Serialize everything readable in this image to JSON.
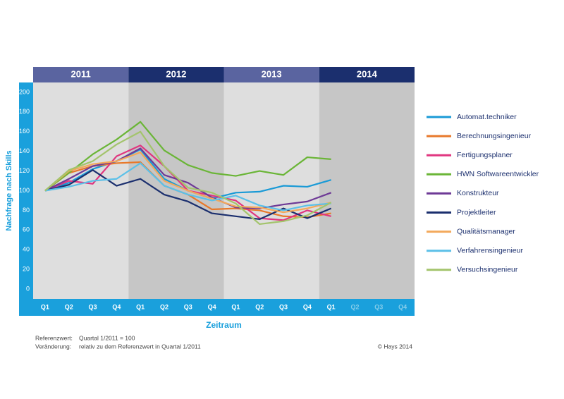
{
  "chart_data": {
    "type": "line",
    "years": [
      "2011",
      "2012",
      "2013",
      "2014"
    ],
    "categories": [
      "Q1",
      "Q2",
      "Q3",
      "Q4",
      "Q1",
      "Q2",
      "Q3",
      "Q4",
      "Q1",
      "Q2",
      "Q3",
      "Q4",
      "Q1",
      "Q2",
      "Q3",
      "Q4"
    ],
    "ylabel": "Nachfrage nach Skills",
    "xlabel": "Zeitraum",
    "ylim": [
      -10,
      210
    ],
    "yticks": [
      0,
      20,
      40,
      60,
      80,
      100,
      120,
      140,
      160,
      180,
      200
    ],
    "grid": false,
    "legend": "right",
    "series": [
      {
        "name": "Automat.techniker",
        "color": "#1a9ad6",
        "values": [
          100,
          108,
          122,
          130,
          142,
          112,
          100,
          92,
          98,
          99,
          105,
          104,
          111,
          null,
          null,
          null
        ]
      },
      {
        "name": "Berechnungsingenieur",
        "color": "#e8782a",
        "values": [
          100,
          118,
          125,
          128,
          129,
          105,
          96,
          81,
          82,
          80,
          74,
          73,
          77,
          null,
          null,
          null
        ]
      },
      {
        "name": "Fertigungsplaner",
        "color": "#e0357f",
        "values": [
          100,
          110,
          107,
          135,
          146,
          125,
          100,
          95,
          90,
          72,
          70,
          80,
          74,
          null,
          null,
          null
        ]
      },
      {
        "name": "HWN Softwareentwickler",
        "color": "#6ab536",
        "values": [
          100,
          118,
          137,
          152,
          170,
          141,
          126,
          118,
          115,
          120,
          116,
          134,
          132,
          null,
          null,
          null
        ]
      },
      {
        "name": "Konstrukteur",
        "color": "#6e3a96",
        "values": [
          100,
          112,
          125,
          130,
          143,
          116,
          108,
          93,
          83,
          82,
          86,
          89,
          98,
          null,
          null,
          null
        ]
      },
      {
        "name": "Projektleiter",
        "color": "#1b2f6e",
        "values": [
          100,
          106,
          121,
          105,
          112,
          96,
          89,
          77,
          74,
          71,
          82,
          72,
          82,
          null,
          null,
          null
        ]
      },
      {
        "name": "Qualitätsmanager",
        "color": "#f3a95b",
        "values": [
          100,
          120,
          127,
          130,
          139,
          110,
          100,
          92,
          84,
          83,
          78,
          82,
          88,
          null,
          null,
          null
        ]
      },
      {
        "name": "Verfahrensingenieur",
        "color": "#5bc0e8",
        "values": [
          100,
          104,
          110,
          112,
          128,
          105,
          96,
          90,
          95,
          85,
          80,
          85,
          87,
          null,
          null,
          null
        ]
      },
      {
        "name": "Versuchsingenieur",
        "color": "#a3c46c",
        "values": [
          100,
          121,
          130,
          147,
          160,
          125,
          103,
          98,
          87,
          66,
          69,
          75,
          88,
          null,
          null,
          null
        ]
      }
    ],
    "notes": [
      {
        "label": "Referenzwert:",
        "text": "Quartal  1/2011 = 100"
      },
      {
        "label": "Veränderung:",
        "text": "relativ zu dem Referenzwert in Quartal 1/2011"
      }
    ],
    "source": "© Hays 2014"
  }
}
